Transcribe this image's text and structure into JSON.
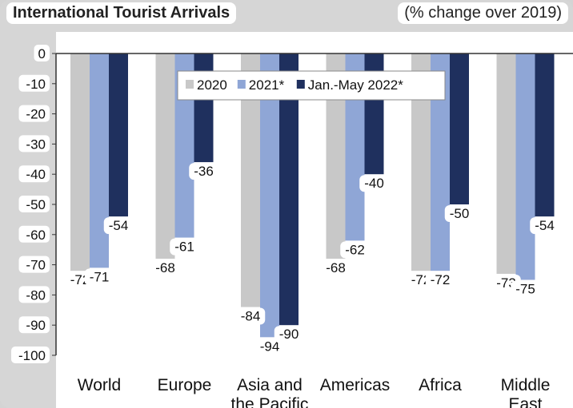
{
  "title": "International Tourist Arrivals",
  "subtitle": "(% change over 2019)",
  "chart_data": {
    "type": "bar",
    "title": "International Tourist Arrivals",
    "subtitle": "(% change over 2019)",
    "categories": [
      "World",
      "Europe",
      "Asia and the Pacific",
      "Americas",
      "Africa",
      "Middle East"
    ],
    "series": [
      {
        "name": "2020",
        "color": "#c8c8c8",
        "values": [
          -72,
          -68,
          -84,
          -68,
          -72,
          -73
        ]
      },
      {
        "name": "2021*",
        "color": "#8fa6d6",
        "values": [
          -71,
          -61,
          -94,
          -62,
          -72,
          -75
        ]
      },
      {
        "name": "Jan.-May 2022*",
        "color": "#1f305e",
        "values": [
          -54,
          -36,
          -90,
          -40,
          -50,
          -54
        ]
      }
    ],
    "ylim": [
      -100,
      0
    ],
    "yticks": [
      0,
      -10,
      -20,
      -30,
      -40,
      -50,
      -60,
      -70,
      -80,
      -90,
      -100
    ],
    "grid": false,
    "legend_position": "top-center"
  }
}
